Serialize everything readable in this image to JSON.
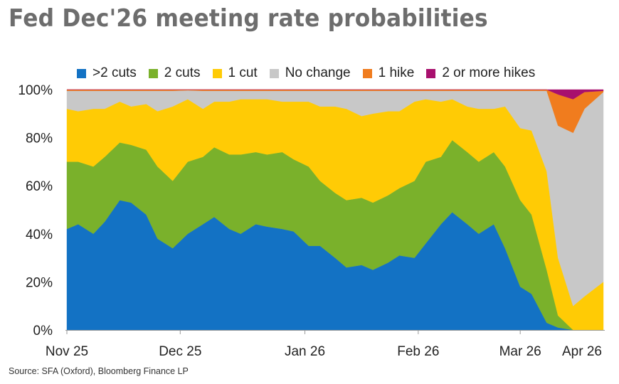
{
  "header": {
    "title": "Fed Dec'26 meeting rate probabilities"
  },
  "source": "Source: SFA (Oxford), Bloomberg Finance LP",
  "chart_data": {
    "type": "area",
    "stacked": true,
    "title": "Fed Dec'26 meeting rate probabilities",
    "xlabel": "",
    "ylabel": "",
    "ylim": [
      0,
      100
    ],
    "y_unit": "%",
    "y_ticks": [
      0,
      20,
      40,
      60,
      80,
      100
    ],
    "y_tick_labels": [
      "0%",
      "20%",
      "40%",
      "60%",
      "80%",
      "100%"
    ],
    "x_range": [
      "2025-11-24",
      "2026-04-15"
    ],
    "x_tick_dates": [
      "2025-11-24",
      "2025-12-24",
      "2026-01-26",
      "2026-02-25",
      "2026-03-24",
      "2026-04-23"
    ],
    "x_tick_labels": [
      "Nov 25",
      "Dec 25",
      "Jan 26",
      "Feb 26",
      "Mar 26",
      "Apr 26"
    ],
    "legend_position": "top",
    "grid": false,
    "x": [
      "2025-11-24",
      "2025-11-27",
      "2025-12-01",
      "2025-12-04",
      "2025-12-08",
      "2025-12-11",
      "2025-12-15",
      "2025-12-18",
      "2025-12-22",
      "2025-12-26",
      "2025-12-30",
      "2026-01-02",
      "2026-01-06",
      "2026-01-09",
      "2026-01-13",
      "2026-01-16",
      "2026-01-20",
      "2026-01-23",
      "2026-01-27",
      "2026-01-30",
      "2026-02-03",
      "2026-02-06",
      "2026-02-10",
      "2026-02-13",
      "2026-02-17",
      "2026-02-20",
      "2026-02-24",
      "2026-02-27",
      "2026-03-03",
      "2026-03-06",
      "2026-03-10",
      "2026-03-13",
      "2026-03-17",
      "2026-03-20",
      "2026-03-24",
      "2026-03-27",
      "2026-03-31",
      "2026-04-03",
      "2026-04-07",
      "2026-04-10",
      "2026-04-15"
    ],
    "series": [
      {
        "name": ">2 cuts",
        "color": "#1372c4",
        "values": [
          42,
          44,
          40,
          45,
          54,
          53,
          48,
          38,
          34,
          40,
          44,
          47,
          42,
          40,
          44,
          43,
          42,
          41,
          35,
          35,
          30,
          26,
          27,
          25,
          28,
          31,
          30,
          36,
          44,
          49,
          44,
          40,
          44,
          34,
          18,
          15,
          3,
          1,
          0,
          0,
          0
        ]
      },
      {
        "name": "2 cuts",
        "color": "#7ab12b",
        "values": [
          28,
          26,
          28,
          27,
          24,
          24,
          27,
          30,
          28,
          30,
          28,
          29,
          31,
          33,
          30,
          30,
          32,
          30,
          33,
          27,
          27,
          28,
          28,
          28,
          28,
          28,
          32,
          34,
          28,
          30,
          30,
          30,
          30,
          34,
          36,
          33,
          22,
          5,
          0,
          0,
          0
        ]
      },
      {
        "name": "1 cut",
        "color": "#ffcb05",
        "values": [
          22,
          21,
          24,
          20,
          17,
          16,
          19,
          23,
          31,
          26,
          20,
          19,
          22,
          23,
          22,
          23,
          21,
          24,
          27,
          31,
          36,
          38,
          34,
          37,
          35,
          32,
          33,
          26,
          23,
          17,
          19,
          22,
          18,
          25,
          30,
          35,
          41,
          24,
          10,
          14,
          20
        ]
      },
      {
        "name": "No change",
        "color": "#c8c8c8",
        "values": [
          7.5,
          8.5,
          7.5,
          7.5,
          4.5,
          6.5,
          5.5,
          8.5,
          6.5,
          3.7,
          7.5,
          4.5,
          4.5,
          3.5,
          3.5,
          3.5,
          4.5,
          4.5,
          4.5,
          6.5,
          6.5,
          7.5,
          10.5,
          9.5,
          8.5,
          8.5,
          4.5,
          3.5,
          4.5,
          3.5,
          6.5,
          7.5,
          7.5,
          6.5,
          15.5,
          16.5,
          33.5,
          55,
          72,
          78,
          79
        ]
      },
      {
        "name": "1 hike",
        "color": "#f07c1e",
        "values": [
          0.5,
          0.5,
          0.5,
          0.5,
          0.5,
          0.5,
          0.5,
          0.5,
          0.5,
          0.3,
          0.5,
          0.5,
          0.5,
          0.5,
          0.5,
          0.5,
          0.5,
          0.5,
          0.5,
          0.5,
          0.5,
          0.5,
          0.5,
          0.5,
          0.5,
          0.5,
          0.5,
          0.5,
          0.5,
          0.5,
          0.5,
          0.5,
          0.5,
          0.5,
          0.5,
          0.5,
          0.5,
          13,
          14,
          7,
          0.5
        ]
      },
      {
        "name": "2 or more hikes",
        "color": "#a8106e",
        "values": [
          0,
          0,
          0,
          0,
          0,
          0,
          0,
          0,
          0,
          0,
          0,
          0,
          0,
          0,
          0,
          0,
          0,
          0,
          0,
          0,
          0,
          0,
          0,
          0,
          0,
          0,
          0,
          0,
          0,
          0,
          0,
          0,
          0,
          0,
          0,
          0,
          0,
          2,
          4,
          1,
          0.5
        ]
      }
    ]
  }
}
